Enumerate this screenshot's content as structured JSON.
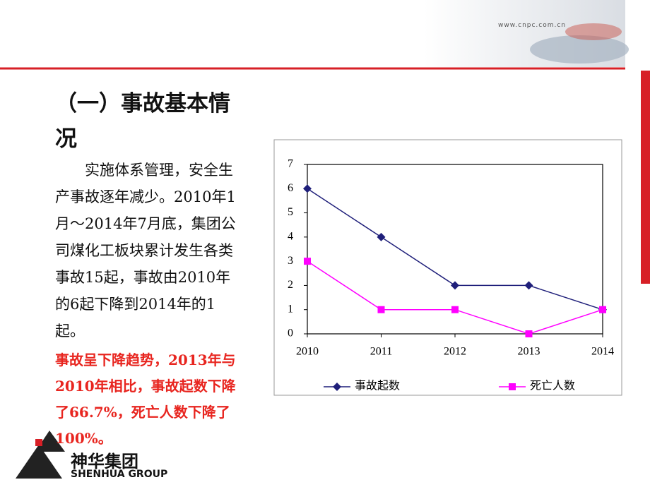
{
  "slide": {
    "url": "www.cnpc.com.cn",
    "title": "（一）事故基本情况",
    "body": "实施体系管理，安全生产事故逐年减少。2010年1月～2014年7月底，集团公司煤化工板块累计发生各类事故15起，事故由2010年的6起下降到2014年的1起。",
    "highlight": "事故呈下降趋势，2013年与2010年相比，事故起数下降了66.7%，死亡人数下降了100%。",
    "logo_cn": "神华集团",
    "logo_en": "SHENHUA GROUP"
  },
  "chart_data": {
    "type": "line",
    "categories": [
      "2010",
      "2011",
      "2012",
      "2013",
      "2014"
    ],
    "series": [
      {
        "name": "事故起数",
        "color": "#1f1f7a",
        "marker": "diamond",
        "values": [
          6,
          4,
          2,
          2,
          1
        ]
      },
      {
        "name": "死亡人数",
        "color": "#ff00ff",
        "marker": "square",
        "values": [
          3,
          1,
          1,
          0,
          1
        ]
      }
    ],
    "ylim": [
      0,
      7
    ],
    "yticks": [
      0,
      1,
      2,
      3,
      4,
      5,
      6,
      7
    ],
    "grid": false,
    "legend": "bottom"
  }
}
